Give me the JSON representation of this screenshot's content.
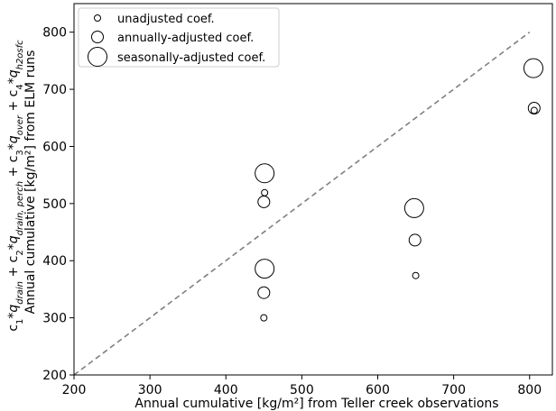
{
  "chart_data": {
    "type": "scatter",
    "title": "",
    "xlabel": "Annual cumulative [kg/m²] from Teller creek observations",
    "ylabel_line1": "c₁*q_drain + c₂*q_drain,perch + c₃*q_over + c₄*q_h2osfc",
    "ylabel_line2": "Annual cumulative [kg/m²] from ELM runs",
    "xlim": [
      200,
      830
    ],
    "ylim": [
      200,
      850
    ],
    "xticks": [
      200,
      300,
      400,
      500,
      600,
      700,
      800
    ],
    "yticks": [
      200,
      300,
      400,
      500,
      600,
      700,
      800
    ],
    "grid": false,
    "legend_position": "top-left",
    "one_to_one_line": {
      "from": [
        200,
        200
      ],
      "to": [
        800,
        800
      ],
      "style": "dashed",
      "color": "#808080"
    },
    "series": [
      {
        "name": "unadjusted coef.",
        "marker_size": "small",
        "points": [
          {
            "x": 450,
            "y": 300
          },
          {
            "x": 451,
            "y": 519
          },
          {
            "x": 650,
            "y": 374
          },
          {
            "x": 806,
            "y": 663
          }
        ]
      },
      {
        "name": "annually-adjusted coef.",
        "marker_size": "medium",
        "points": [
          {
            "x": 450,
            "y": 344
          },
          {
            "x": 450,
            "y": 503
          },
          {
            "x": 649,
            "y": 436
          },
          {
            "x": 806,
            "y": 667
          }
        ]
      },
      {
        "name": "seasonally-adjusted coef.",
        "marker_size": "large",
        "points": [
          {
            "x": 451,
            "y": 386
          },
          {
            "x": 451,
            "y": 553
          },
          {
            "x": 648,
            "y": 492
          },
          {
            "x": 805,
            "y": 737
          }
        ]
      }
    ]
  }
}
